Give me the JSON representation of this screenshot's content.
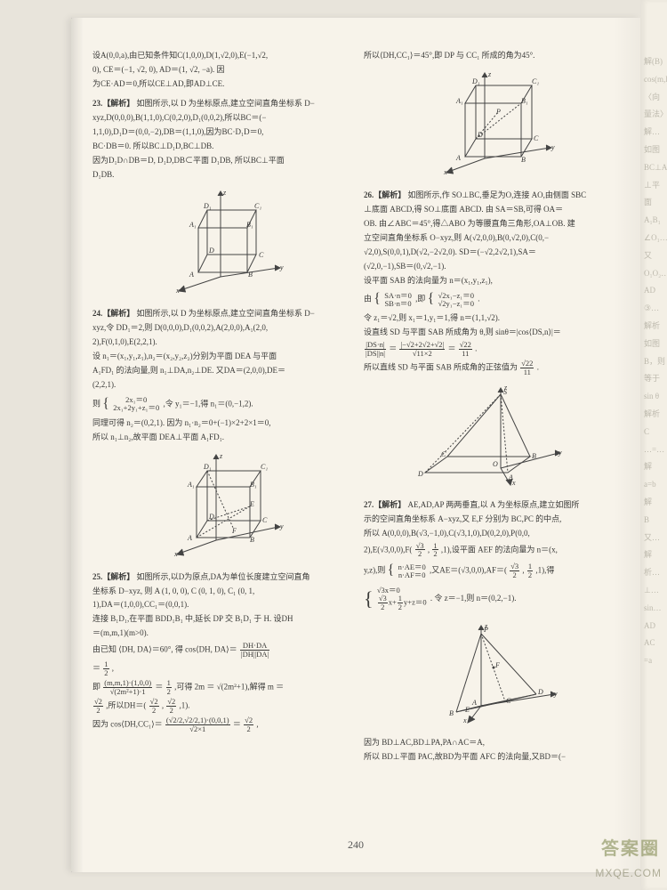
{
  "page_number": "240",
  "left_col": {
    "b22": {
      "l1": "设A(0,0,a),由已知条件知C(1,0,0),D(1,√2,0),E(−1,√2,",
      "l2": "0), CE＝(−1, √2, 0), AD＝(1, √2, −a). 因",
      "l3": "为CE·AD＝0,所以CE⊥AD,即AD⊥CE."
    },
    "b23": {
      "head": "23.【解析】",
      "l1": "如图所示,以 D 为坐标原点,建立空间直角坐标系 D−",
      "l2": "xyz,D(0,0,0),B(1,1,0),C(0,2,0),D₁(0,0,2),所以BC＝(−",
      "l3": "1,1,0),D₁D＝(0,0,−2),DB＝(1,1,0),因为BC·D₁D＝0,",
      "l4": "BC·DB＝0. 所以BC⊥D₁D,BC⊥DB.",
      "l5": "因为D₁D∩DB＝D, D₁D,DB⊂平面 D₁DB, 所以BC⊥平面",
      "l6": "D₁DB."
    },
    "fig23_labels": {
      "D1": "D₁",
      "C1": "C₁",
      "A1": "A₁",
      "B1": "B₁",
      "D": "D",
      "C": "C",
      "A": "A",
      "B": "B",
      "x": "x",
      "y": "y",
      "z": "z"
    },
    "b24": {
      "head": "24.【解析】",
      "l1": "如图所示,以 D 为坐标原点,建立空间直角坐标系 D−",
      "l2": "xyz,令 DD₁＝2,则 D(0,0,0),D₁(0,0,2),A(2,0,0),A₁(2,0,",
      "l3": "2),F(0,1,0),E(2,2,1).",
      "l4": "设 n₁＝(x₁,y₁,z₁),n₂＝(x₂,y₂,z₂)分别为平面 DEA 与平面",
      "l5": "A₁FD₁ 的法向量,则 n₁⊥DA,n₂⊥DE. 又DA＝(2,0,0),DE＝",
      "l6": "(2,2,1).",
      "l7a": "则",
      "eq1_top": "2x₁＝0",
      "eq1_bot": "2x₁+2y₁+z₁＝0",
      "l7b": ",令 y₁＝−1,得 n₁＝(0,−1,2).",
      "l8": "同理可得 n₂＝(0,2,1). 因为 n₁·n₂＝0+(−1)×2+2×1＝0,",
      "l9": "所以 n₁⊥n₂,故平面 DEA⊥平面 A₁FD₁."
    },
    "fig24_labels": {
      "D1": "D₁",
      "C1": "C₁",
      "A1": "A₁",
      "B1": "B₁",
      "D": "D",
      "C": "C",
      "A": "A",
      "B": "B",
      "E": "E",
      "F": "F",
      "x": "x",
      "y": "y",
      "z": "z"
    },
    "b25": {
      "head": "25.【解析】",
      "l1": "如图所示,以D为原点,DA为单位长度建立空间直角",
      "l2": "坐标系 D−xyz, 则 A (1, 0, 0), C (0, 1, 0), C₁ (0, 1,",
      "l3": "1),DA＝(1,0,0),CC₁＝(0,0,1).",
      "l4": "连接 B₁D₁,在平面 BDD₁B₁ 中,延长 DP 交 B₁D₁ 于 H. 设DH",
      "l5": "＝(m,m,1)(m>0).",
      "l6a": "由已知 ⟨DH, DA⟩＝60°, 得 cos⟨DH, DA⟩＝",
      "l6_frac_t": "DH·DA",
      "l6_frac_b": "|DH||DA|",
      "l7a": "＝",
      "l7_frac1_t": "1",
      "l7_frac1_b": "2",
      "l7b": ",",
      "l8a": "即",
      "l8_frac_t": "(m,m,1)·(1,0,0)",
      "l8_frac_b": "√(2m²+1)·1",
      "l8b": "＝",
      "l8_frac2_t": "1",
      "l8_frac2_b": "2",
      "l8c": ",可得 2m ＝ √(2m²+1),解得 m ＝",
      "l9_frac_t": "√2",
      "l9_frac_b": "2",
      "l9b": ",所以DH＝(",
      "l9_frac2_t": "√2",
      "l9_frac2_b": "2",
      "l9c": ",",
      "l9_frac3_t": "√2",
      "l9_frac3_b": "2",
      "l9d": ",1).",
      "l10a": "因为 cos⟨DH,CC₁⟩＝",
      "l10_frac_t": "(√2/2,√2/2,1)·(0,0,1)",
      "l10_frac_b": "√2×1",
      "l10b": "＝",
      "l10_frac2_t": "√2",
      "l10_frac2_b": "2",
      "l10c": ","
    }
  },
  "right_col": {
    "b25c": {
      "l1": "所以⟨DH,CC₁⟩＝45°,即 DP 与 CC₁ 所成的角为45°."
    },
    "fig25_labels": {
      "D1": "D₁",
      "C1": "C₁",
      "A1": "A₁",
      "B1": "B₁",
      "D": "D",
      "C": "C",
      "A": "A",
      "B": "B",
      "P": "P",
      "x": "x",
      "y": "y",
      "z": "z"
    },
    "b26": {
      "head": "26.【解析】",
      "l1": "如图所示,作 SO⊥BC,垂足为O,连接 AO,由侧面 SBC",
      "l2": "⊥底面 ABCD,得 SO⊥底面 ABCD. 由 SA＝SB,可得 OA＝",
      "l3": "OB. 由∠ABC＝45°,得△ABO 为等腰直角三角形,OA⊥OB. 建",
      "l4": "立空间直角坐标系 O−xyz,则 A(√2,0,0),B(0,√2,0),C(0,−",
      "l5": "√2,0),S(0,0,1),D(√2,−2√2,0). SD＝(−√2,2√2,1),SA＝",
      "l6": "(√2,0,−1),SB＝(0,√2,−1).",
      "l7": "设平面 SAB 的法向量为 n＝(x₁,y₁,z₁),",
      "l8a": "由",
      "eq_top": "SA·n＝0",
      "eq_bot": "SB·n＝0",
      "l8b": ",即",
      "eq2_top": "√2x₁−z₁＝0",
      "eq2_bot": "√2y₁−z₁＝0",
      "l8c": ".",
      "l9": "令 z₁＝√2,则 x₁＝1,y₁＝1,得 n＝(1,1,√2).",
      "l10": "设直线 SD 与平面 SAB 所成角为 θ,则 sinθ＝|cos⟨DS,n⟩|＝",
      "l11_frac_t": "|DS·n|",
      "l11_frac_b": "|DS||n|",
      "l11b": "＝",
      "l11_frac2_t": "|−√2+2√2+√2|",
      "l11_frac2_b": "√11×2",
      "l11c": "＝",
      "l11_frac3_t": "√22",
      "l11_frac3_b": "11",
      "l11d": ".",
      "l12a": "所以直线 SD 与平面 SAB 所成角的正弦值为",
      "l12_frac_t": "√22",
      "l12_frac_b": "11",
      "l12b": "."
    },
    "fig26_labels": {
      "S": "S",
      "A": "A",
      "B": "B",
      "C": "C",
      "D": "D",
      "O": "O",
      "x": "x",
      "y": "y",
      "z": "z"
    },
    "b27": {
      "head": "27.【解析】",
      "l1": "AE,AD,AP 两两垂直,以 A 为坐标原点,建立如图所",
      "l2": "示的空间直角坐标系 A−xyz,又 E,F 分别为 BC,PC 的中点,",
      "l3": "所以 A(0,0,0),B(√3,−1,0),C(√3,1,0),D(0,2,0),P(0,0,",
      "l4a": "2),E(√3,0,0),F(",
      "l4_frac_t": "√3",
      "l4_frac_b": "2",
      "l4b": ",",
      "l4_frac2_t": "1",
      "l4_frac2_b": "2",
      "l4c": ",1),设平面 AEF 的法向量为 n＝(x,",
      "l5a": "y,z),则",
      "eq_top": "n·AE＝0",
      "eq_bot": "n·AF＝0",
      "l5b": ",又AE＝(√3,0,0),AF＝(",
      "l5_frac_t": "√3",
      "l5_frac_b": "2",
      "l5c": ",",
      "l5_frac2_t": "1",
      "l5_frac2_b": "2",
      "l5d": ",1),得",
      "l6_top": "√3x＝0",
      "l6_bot_a": "",
      "l6_bot_frac1_t": "√3",
      "l6_bot_frac1_b": "2",
      "l6_bot_b": "x+",
      "l6_bot_frac2_t": "1",
      "l6_bot_frac2_b": "2",
      "l6_bot_c": "y+z＝0",
      "l6c": ". 令 z＝−1,则 n＝(0,2,−1).",
      "l7": "因为 BD⊥AC,BD⊥PA,PA∩AC＝A,",
      "l8": "所以 BD⊥平面 PAC,故BD为平面 AFC 的法向量,又BD＝(−"
    },
    "fig27_labels": {
      "P": "P",
      "A": "A",
      "B": "B",
      "C": "C",
      "D": "D",
      "E": "E",
      "F": "F",
      "x": "x",
      "y": "y",
      "z": "z"
    }
  },
  "watermark1": "答案圈",
  "watermark2": "MXQE.COM",
  "sliver_lines": [
    "解(B)",
    "cos(m,BD)",
    "〈向量法〉",
    "解…如图",
    "BC⊥AB",
    "⊥平面 A₁B₁",
    "∠O₁…又",
    "O₁O₂…",
    "AD",
    "③…",
    "解析 如图",
    "B，则",
    "等于",
    "sin θ",
    "解析 C",
    "…=…",
    "解",
    "a=b",
    "解",
    "B",
    "又…",
    "解析…",
    "⊥…",
    "sin…",
    "AD",
    "AC",
    "=a"
  ]
}
